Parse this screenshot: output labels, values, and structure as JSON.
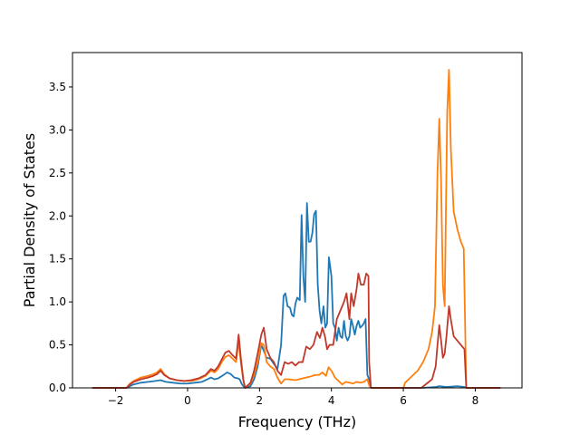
{
  "chart_data": {
    "type": "line",
    "xlabel": "Frequency (THz)",
    "ylabel": "Partial Density of States",
    "xlim": [
      -3.2,
      9.3
    ],
    "ylim": [
      0,
      3.9
    ],
    "xticks": [
      -2,
      0,
      2,
      4,
      6,
      8
    ],
    "yticks": [
      0.0,
      0.5,
      1.0,
      1.5,
      2.0,
      2.5,
      3.0,
      3.5
    ],
    "xtick_labels": [
      "−2",
      "0",
      "2",
      "4",
      "6",
      "8"
    ],
    "ytick_labels": [
      "0.0",
      "0.5",
      "1.0",
      "1.5",
      "2.0",
      "2.5",
      "3.0",
      "3.5"
    ],
    "grid": false,
    "series": [
      {
        "color": "#1f77b4",
        "points": [
          [
            -2.65,
            0.0
          ],
          [
            -1.7,
            0.0
          ],
          [
            -1.6,
            0.02
          ],
          [
            -1.5,
            0.04
          ],
          [
            -1.3,
            0.06
          ],
          [
            -1.1,
            0.07
          ],
          [
            -0.9,
            0.08
          ],
          [
            -0.75,
            0.09
          ],
          [
            -0.6,
            0.07
          ],
          [
            -0.4,
            0.06
          ],
          [
            -0.2,
            0.05
          ],
          [
            0.0,
            0.05
          ],
          [
            0.2,
            0.06
          ],
          [
            0.4,
            0.07
          ],
          [
            0.55,
            0.1
          ],
          [
            0.65,
            0.12
          ],
          [
            0.75,
            0.1
          ],
          [
            0.85,
            0.11
          ],
          [
            1.0,
            0.15
          ],
          [
            1.1,
            0.18
          ],
          [
            1.2,
            0.16
          ],
          [
            1.3,
            0.12
          ],
          [
            1.4,
            0.11
          ],
          [
            1.45,
            0.1
          ],
          [
            1.5,
            0.05
          ],
          [
            1.55,
            0.02
          ],
          [
            1.6,
            0.0
          ],
          [
            1.75,
            0.02
          ],
          [
            1.85,
            0.1
          ],
          [
            1.95,
            0.25
          ],
          [
            2.05,
            0.5
          ],
          [
            2.1,
            0.45
          ],
          [
            2.2,
            0.35
          ],
          [
            2.3,
            0.34
          ],
          [
            2.4,
            0.28
          ],
          [
            2.5,
            0.22
          ],
          [
            2.6,
            0.5
          ],
          [
            2.67,
            1.07
          ],
          [
            2.72,
            1.1
          ],
          [
            2.78,
            0.95
          ],
          [
            2.85,
            0.93
          ],
          [
            2.9,
            0.85
          ],
          [
            2.95,
            0.83
          ],
          [
            3.0,
            0.98
          ],
          [
            3.05,
            1.05
          ],
          [
            3.12,
            1.02
          ],
          [
            3.17,
            2.01
          ],
          [
            3.22,
            1.3
          ],
          [
            3.27,
            1.0
          ],
          [
            3.32,
            2.15
          ],
          [
            3.37,
            1.7
          ],
          [
            3.42,
            1.7
          ],
          [
            3.47,
            1.8
          ],
          [
            3.52,
            2.02
          ],
          [
            3.57,
            2.06
          ],
          [
            3.62,
            1.2
          ],
          [
            3.67,
            0.9
          ],
          [
            3.72,
            0.75
          ],
          [
            3.78,
            0.95
          ],
          [
            3.83,
            0.7
          ],
          [
            3.88,
            0.75
          ],
          [
            3.93,
            1.52
          ],
          [
            4.0,
            1.3
          ],
          [
            4.05,
            0.75
          ],
          [
            4.1,
            0.7
          ],
          [
            4.15,
            0.55
          ],
          [
            4.2,
            0.7
          ],
          [
            4.25,
            0.6
          ],
          [
            4.3,
            0.58
          ],
          [
            4.35,
            0.78
          ],
          [
            4.4,
            0.6
          ],
          [
            4.45,
            0.55
          ],
          [
            4.5,
            0.6
          ],
          [
            4.55,
            0.8
          ],
          [
            4.6,
            0.72
          ],
          [
            4.65,
            0.62
          ],
          [
            4.7,
            0.72
          ],
          [
            4.75,
            0.78
          ],
          [
            4.8,
            0.7
          ],
          [
            4.85,
            0.72
          ],
          [
            4.9,
            0.75
          ],
          [
            4.95,
            0.8
          ],
          [
            5.0,
            0.15
          ],
          [
            5.05,
            0.1
          ],
          [
            5.1,
            0.0
          ],
          [
            5.5,
            0.0
          ],
          [
            6.0,
            0.0
          ],
          [
            6.5,
            0.0
          ],
          [
            6.9,
            0.01
          ],
          [
            7.0,
            0.02
          ],
          [
            7.2,
            0.01
          ],
          [
            7.5,
            0.02
          ],
          [
            7.7,
            0.01
          ],
          [
            7.75,
            0.0
          ],
          [
            8.7,
            0.0
          ]
        ]
      },
      {
        "color": "#ff7f0e",
        "points": [
          [
            -2.65,
            0.0
          ],
          [
            -1.7,
            0.0
          ],
          [
            -1.6,
            0.05
          ],
          [
            -1.5,
            0.08
          ],
          [
            -1.3,
            0.12
          ],
          [
            -1.1,
            0.14
          ],
          [
            -0.95,
            0.16
          ],
          [
            -0.85,
            0.18
          ],
          [
            -0.75,
            0.22
          ],
          [
            -0.65,
            0.16
          ],
          [
            -0.5,
            0.11
          ],
          [
            -0.3,
            0.09
          ],
          [
            -0.1,
            0.08
          ],
          [
            0.1,
            0.08
          ],
          [
            0.3,
            0.1
          ],
          [
            0.5,
            0.14
          ],
          [
            0.65,
            0.2
          ],
          [
            0.75,
            0.18
          ],
          [
            0.85,
            0.22
          ],
          [
            0.95,
            0.3
          ],
          [
            1.05,
            0.36
          ],
          [
            1.15,
            0.38
          ],
          [
            1.25,
            0.34
          ],
          [
            1.35,
            0.3
          ],
          [
            1.42,
            0.55
          ],
          [
            1.48,
            0.3
          ],
          [
            1.55,
            0.08
          ],
          [
            1.6,
            0.0
          ],
          [
            1.75,
            0.05
          ],
          [
            1.85,
            0.15
          ],
          [
            1.95,
            0.3
          ],
          [
            2.05,
            0.52
          ],
          [
            2.12,
            0.5
          ],
          [
            2.2,
            0.3
          ],
          [
            2.3,
            0.25
          ],
          [
            2.4,
            0.22
          ],
          [
            2.5,
            0.12
          ],
          [
            2.6,
            0.05
          ],
          [
            2.7,
            0.1
          ],
          [
            2.8,
            0.1
          ],
          [
            3.0,
            0.09
          ],
          [
            3.2,
            0.11
          ],
          [
            3.4,
            0.13
          ],
          [
            3.55,
            0.15
          ],
          [
            3.65,
            0.15
          ],
          [
            3.75,
            0.18
          ],
          [
            3.85,
            0.14
          ],
          [
            3.92,
            0.24
          ],
          [
            4.0,
            0.2
          ],
          [
            4.1,
            0.12
          ],
          [
            4.2,
            0.08
          ],
          [
            4.3,
            0.04
          ],
          [
            4.4,
            0.07
          ],
          [
            4.5,
            0.06
          ],
          [
            4.6,
            0.05
          ],
          [
            4.7,
            0.07
          ],
          [
            4.8,
            0.06
          ],
          [
            4.9,
            0.07
          ],
          [
            5.0,
            0.1
          ],
          [
            5.05,
            0.03
          ],
          [
            5.1,
            0.0
          ],
          [
            5.5,
            0.0
          ],
          [
            6.0,
            0.0
          ],
          [
            6.05,
            0.06
          ],
          [
            6.2,
            0.12
          ],
          [
            6.4,
            0.2
          ],
          [
            6.55,
            0.3
          ],
          [
            6.7,
            0.45
          ],
          [
            6.8,
            0.65
          ],
          [
            6.88,
            0.95
          ],
          [
            6.95,
            2.5
          ],
          [
            7.0,
            3.13
          ],
          [
            7.05,
            2.4
          ],
          [
            7.1,
            1.2
          ],
          [
            7.15,
            0.95
          ],
          [
            7.22,
            3.2
          ],
          [
            7.27,
            3.7
          ],
          [
            7.32,
            2.8
          ],
          [
            7.4,
            2.05
          ],
          [
            7.5,
            1.85
          ],
          [
            7.6,
            1.7
          ],
          [
            7.68,
            1.62
          ],
          [
            7.75,
            0.0
          ],
          [
            8.7,
            0.0
          ]
        ]
      },
      {
        "color": "#c0392b",
        "points": [
          [
            -2.65,
            0.0
          ],
          [
            -1.7,
            0.0
          ],
          [
            -1.6,
            0.04
          ],
          [
            -1.5,
            0.07
          ],
          [
            -1.3,
            0.1
          ],
          [
            -1.1,
            0.12
          ],
          [
            -0.95,
            0.14
          ],
          [
            -0.85,
            0.16
          ],
          [
            -0.75,
            0.2
          ],
          [
            -0.65,
            0.15
          ],
          [
            -0.5,
            0.11
          ],
          [
            -0.3,
            0.09
          ],
          [
            -0.1,
            0.08
          ],
          [
            0.1,
            0.09
          ],
          [
            0.3,
            0.11
          ],
          [
            0.5,
            0.15
          ],
          [
            0.65,
            0.22
          ],
          [
            0.75,
            0.2
          ],
          [
            0.85,
            0.25
          ],
          [
            0.95,
            0.33
          ],
          [
            1.05,
            0.41
          ],
          [
            1.15,
            0.43
          ],
          [
            1.25,
            0.38
          ],
          [
            1.35,
            0.34
          ],
          [
            1.42,
            0.62
          ],
          [
            1.48,
            0.35
          ],
          [
            1.55,
            0.1
          ],
          [
            1.6,
            0.0
          ],
          [
            1.75,
            0.06
          ],
          [
            1.85,
            0.2
          ],
          [
            1.95,
            0.4
          ],
          [
            2.05,
            0.62
          ],
          [
            2.12,
            0.7
          ],
          [
            2.2,
            0.45
          ],
          [
            2.3,
            0.35
          ],
          [
            2.4,
            0.3
          ],
          [
            2.5,
            0.2
          ],
          [
            2.6,
            0.15
          ],
          [
            2.7,
            0.3
          ],
          [
            2.8,
            0.28
          ],
          [
            2.9,
            0.3
          ],
          [
            3.0,
            0.26
          ],
          [
            3.1,
            0.3
          ],
          [
            3.2,
            0.3
          ],
          [
            3.3,
            0.48
          ],
          [
            3.4,
            0.45
          ],
          [
            3.5,
            0.5
          ],
          [
            3.6,
            0.65
          ],
          [
            3.68,
            0.58
          ],
          [
            3.75,
            0.7
          ],
          [
            3.82,
            0.6
          ],
          [
            3.88,
            0.45
          ],
          [
            3.95,
            0.5
          ],
          [
            4.05,
            0.5
          ],
          [
            4.15,
            0.8
          ],
          [
            4.25,
            0.9
          ],
          [
            4.35,
            1.0
          ],
          [
            4.42,
            1.1
          ],
          [
            4.5,
            0.8
          ],
          [
            4.55,
            1.1
          ],
          [
            4.62,
            0.95
          ],
          [
            4.7,
            1.15
          ],
          [
            4.75,
            1.33
          ],
          [
            4.82,
            1.2
          ],
          [
            4.9,
            1.2
          ],
          [
            4.97,
            1.33
          ],
          [
            5.03,
            1.3
          ],
          [
            5.05,
            0.3
          ],
          [
            5.1,
            0.0
          ],
          [
            5.5,
            0.0
          ],
          [
            6.0,
            0.0
          ],
          [
            6.5,
            0.0
          ],
          [
            6.8,
            0.1
          ],
          [
            6.9,
            0.25
          ],
          [
            6.95,
            0.5
          ],
          [
            7.0,
            0.73
          ],
          [
            7.05,
            0.55
          ],
          [
            7.1,
            0.35
          ],
          [
            7.15,
            0.4
          ],
          [
            7.2,
            0.6
          ],
          [
            7.27,
            0.95
          ],
          [
            7.32,
            0.8
          ],
          [
            7.4,
            0.6
          ],
          [
            7.5,
            0.55
          ],
          [
            7.6,
            0.5
          ],
          [
            7.7,
            0.45
          ],
          [
            7.75,
            0.0
          ],
          [
            8.7,
            0.0
          ]
        ]
      }
    ]
  }
}
